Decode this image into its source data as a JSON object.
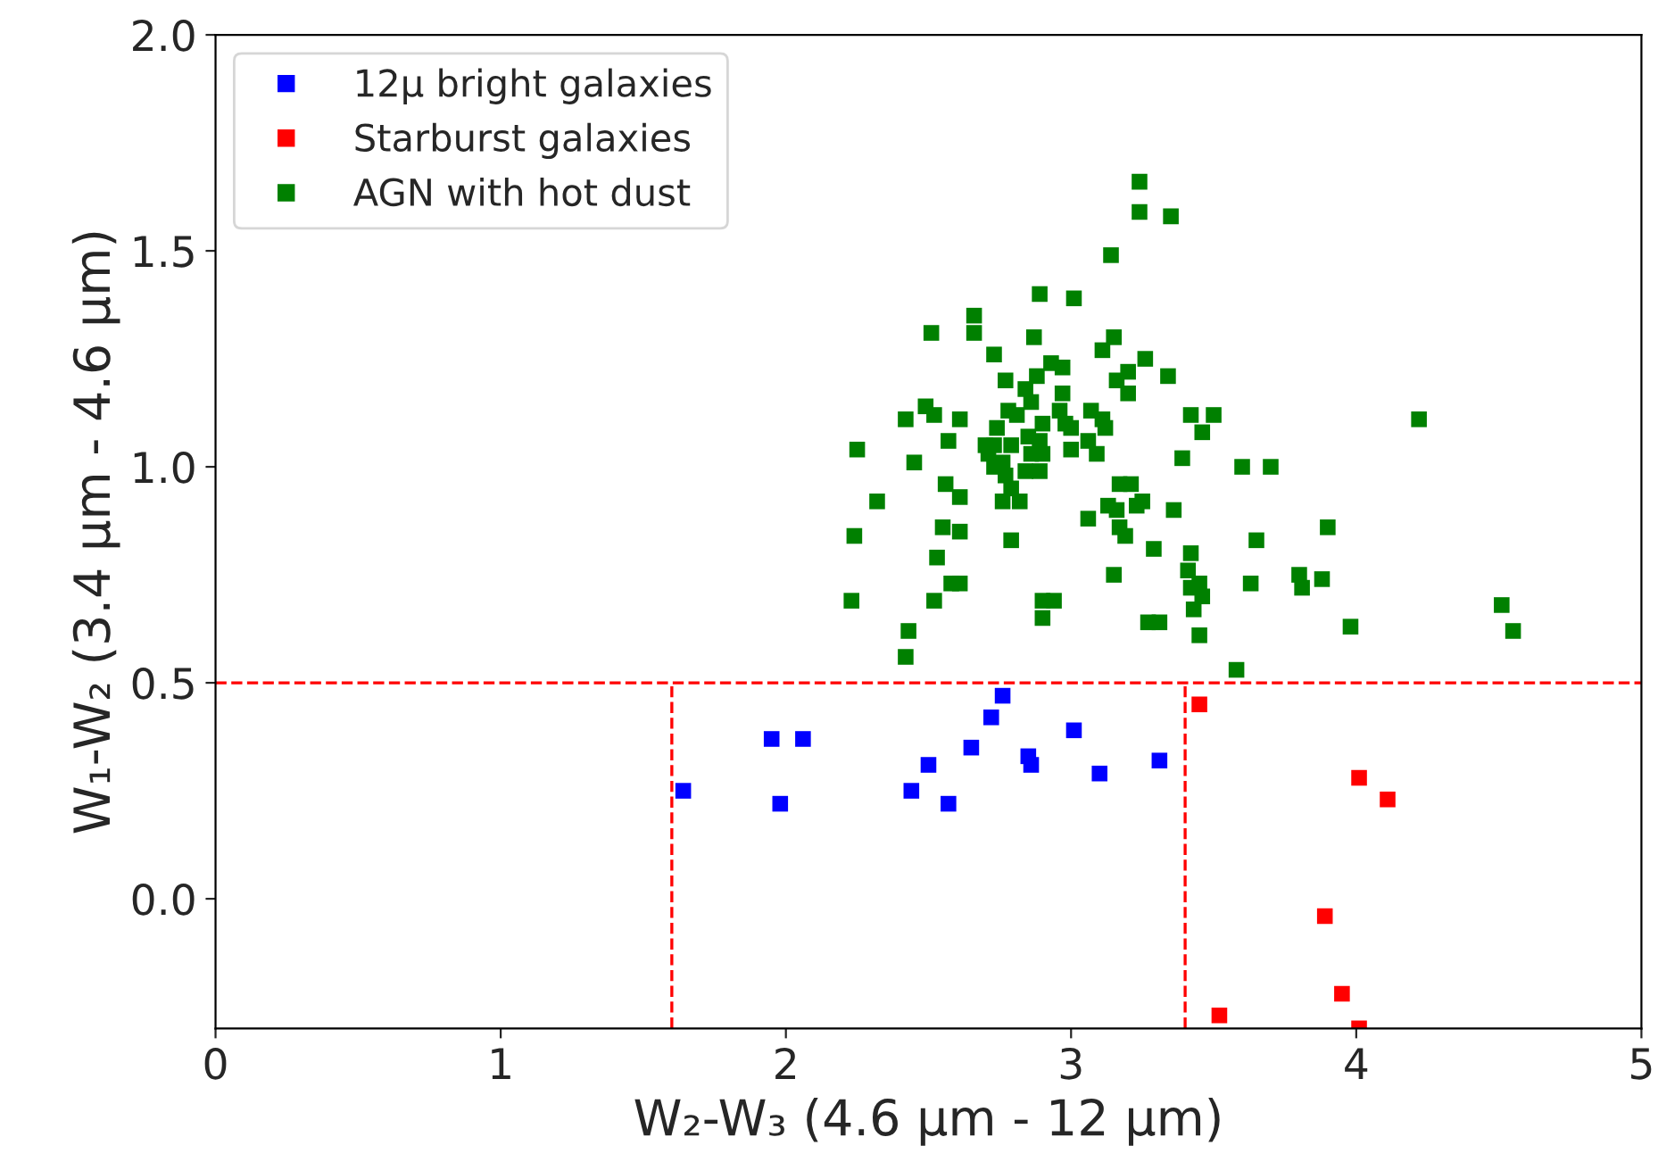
{
  "chart_data": {
    "type": "scatter",
    "xlabel": "W₂-W₃ (4.6 μm - 12 μm)",
    "ylabel": "W₁-W₂ (3.4 μm - 4.6 μm)",
    "xlim": [
      0,
      5
    ],
    "ylim": [
      -0.3,
      2.0
    ],
    "xticks": [
      0,
      1,
      2,
      3,
      4,
      5
    ],
    "yticks": [
      {
        "value": 0,
        "label": "0.0"
      },
      0.5,
      {
        "value": 1,
        "label": "1.0"
      },
      1.5,
      {
        "value": 2,
        "label": "2.0"
      }
    ],
    "legend": "top left",
    "marker": "square",
    "grid": false,
    "ref_lines": [
      {
        "axis": "y",
        "value": 0.5,
        "color": "#ff0000",
        "line_style": "dashed"
      },
      {
        "axis": "x",
        "value": 1.6,
        "color": "#ff0000",
        "line_style": "dashed"
      },
      {
        "axis": "x",
        "value": 3.4,
        "color": "#ff0000",
        "line_style": "dashed"
      }
    ],
    "series": [
      {
        "name": "12μ bright galaxies",
        "color": "#0000ff",
        "x": [
          1.64,
          1.95,
          2.06,
          1.98,
          2.44,
          2.5,
          2.57,
          2.65,
          2.72,
          2.76,
          2.85,
          2.86,
          3.01,
          3.1,
          3.31
        ],
        "values": [
          0.25,
          0.37,
          0.37,
          0.22,
          0.25,
          0.31,
          0.22,
          0.35,
          0.42,
          0.47,
          0.33,
          0.31,
          0.39,
          0.29,
          0.32
        ]
      },
      {
        "name": "Starburst galaxies",
        "color": "#ff0000",
        "x": [
          3.45,
          4.01,
          4.11,
          3.89,
          3.95,
          3.52,
          4.01
        ],
        "values": [
          0.45,
          0.28,
          0.23,
          -0.04,
          -0.22,
          -0.27,
          -0.3
        ]
      },
      {
        "name": "AGN with hot dust",
        "color": "#008000",
        "x": [
          3.24,
          3.24,
          3.35,
          3.14,
          2.89,
          3.01,
          2.66,
          2.66,
          2.51,
          2.87,
          2.73,
          3.15,
          3.11,
          3.26,
          3.34,
          2.93,
          2.97,
          2.77,
          2.88,
          2.84,
          3.16,
          3.2,
          3.2,
          2.49,
          2.52,
          2.42,
          2.61,
          2.78,
          2.81,
          2.86,
          2.97,
          2.74,
          2.9,
          2.96,
          2.98,
          3.0,
          3.07,
          3.11,
          3.12,
          3.42,
          3.5,
          3.46,
          2.85,
          2.89,
          2.25,
          2.57,
          2.7,
          2.73,
          2.79,
          2.86,
          2.9,
          3.0,
          3.06,
          3.09,
          2.45,
          2.71,
          2.76,
          2.73,
          2.84,
          2.89,
          3.39,
          3.6,
          2.77,
          2.56,
          2.61,
          2.32,
          2.79,
          2.76,
          2.82,
          3.17,
          3.21,
          3.13,
          3.23,
          3.25,
          3.36,
          3.16,
          3.06,
          2.24,
          2.55,
          2.61,
          3.17,
          3.19,
          2.79,
          3.29,
          3.42,
          2.53,
          3.15,
          3.41,
          3.45,
          3.42,
          2.58,
          2.61,
          3.46,
          2.23,
          2.52,
          2.9,
          2.94,
          3.43,
          2.9,
          3.27,
          3.31,
          3.45,
          2.43,
          2.42,
          3.58,
          4.22,
          3.7,
          3.9,
          3.65,
          3.8,
          3.81,
          3.88,
          3.63,
          3.98,
          4.51,
          4.55
        ],
        "values": [
          1.66,
          1.59,
          1.58,
          1.49,
          1.4,
          1.39,
          1.35,
          1.31,
          1.31,
          1.3,
          1.26,
          1.3,
          1.27,
          1.25,
          1.21,
          1.24,
          1.23,
          1.2,
          1.21,
          1.18,
          1.2,
          1.22,
          1.17,
          1.14,
          1.12,
          1.11,
          1.11,
          1.13,
          1.12,
          1.15,
          1.17,
          1.09,
          1.1,
          1.13,
          1.1,
          1.09,
          1.13,
          1.11,
          1.09,
          1.12,
          1.12,
          1.08,
          1.07,
          1.06,
          1.04,
          1.06,
          1.05,
          1.05,
          1.05,
          1.03,
          1.03,
          1.04,
          1.06,
          1.03,
          1.01,
          1.03,
          1.01,
          1.0,
          0.99,
          0.99,
          1.02,
          1.0,
          0.98,
          0.96,
          0.93,
          0.92,
          0.95,
          0.92,
          0.92,
          0.96,
          0.96,
          0.91,
          0.91,
          0.92,
          0.9,
          0.9,
          0.88,
          0.84,
          0.86,
          0.85,
          0.86,
          0.84,
          0.83,
          0.81,
          0.8,
          0.79,
          0.75,
          0.76,
          0.73,
          0.72,
          0.73,
          0.73,
          0.7,
          0.69,
          0.69,
          0.69,
          0.69,
          0.67,
          0.65,
          0.64,
          0.64,
          0.61,
          0.62,
          0.56,
          0.53,
          1.11,
          1.0,
          0.86,
          0.83,
          0.75,
          0.72,
          0.74,
          0.73,
          0.63,
          0.68,
          0.62
        ]
      }
    ]
  }
}
